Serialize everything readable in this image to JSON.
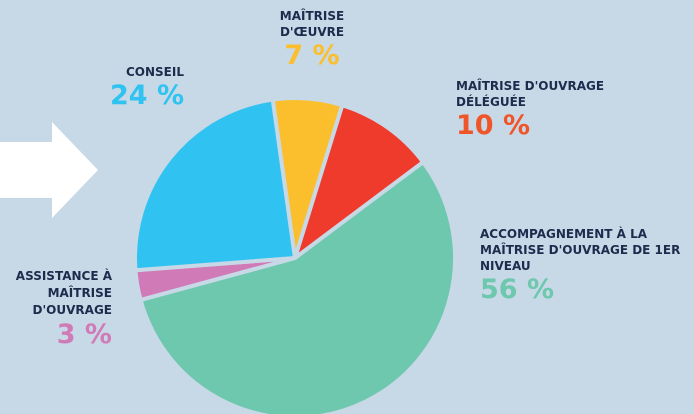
{
  "chart_data": {
    "type": "pie",
    "categories": [
      "MAÎTRISE D'ŒUVRE",
      "MAÎTRISE D'OUVRAGE DÉLÉGUÉE",
      "ACCOMPAGNEMENT À LA MAÎTRISE D'OUVRAGE DE 1ER NIVEAU",
      "ASSISTANCE À MAÎTRISE D'OUVRAGE",
      "CONSEIL"
    ],
    "values": [
      7,
      10,
      56,
      3,
      24
    ],
    "value_labels": [
      "7 %",
      "10 %",
      "56 %",
      "3 %",
      "24 %"
    ],
    "colors": [
      "#fbbf2e",
      "#ef3b2c",
      "#6dc8ae",
      "#d07bb8",
      "#30c3f1"
    ],
    "label_colors": [
      "#fbbf2e",
      "#f0552a",
      "#6dc8ae",
      "#d07bb8",
      "#30c3f1"
    ]
  }
}
